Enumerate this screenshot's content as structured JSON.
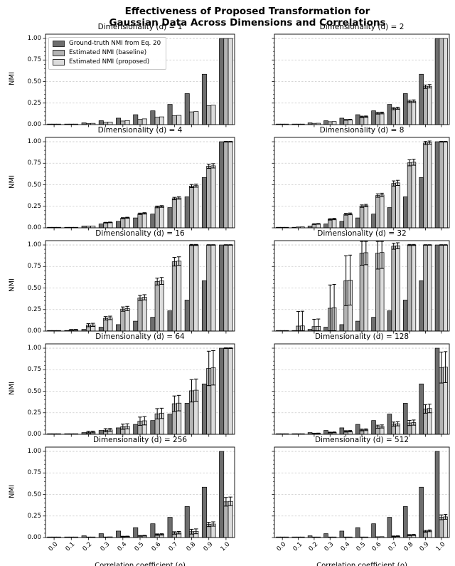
{
  "figure": {
    "title_line1": "Effectiveness of Proposed Transformation for",
    "title_line2": "Gaussian Data Across Dimensions and Correlations",
    "xlabel": "Correlation coefficient (ρ)",
    "ylabel": "NMI"
  },
  "legend": {
    "items": [
      {
        "label": "Ground-truth NMI from Eq. 20",
        "series": "ground_truth"
      },
      {
        "label": "Estimated NMI (baseline)",
        "series": "baseline"
      },
      {
        "label": "Estimated NMI (proposed)",
        "series": "proposed"
      }
    ]
  },
  "chart_data": {
    "type": "bar",
    "grid": "horizontal-dashed",
    "legend_position": "upper-left-of-first-subplot",
    "categories": [
      "0.0",
      "0.1",
      "0.2",
      "0.3",
      "0.4",
      "0.5",
      "0.6",
      "0.7",
      "0.8",
      "0.9",
      "1.0"
    ],
    "y_ticks": [
      {
        "value": 1.0,
        "label": "1.00"
      },
      {
        "value": 0.75,
        "label": "0.75"
      },
      {
        "value": 0.5,
        "label": "0.50"
      },
      {
        "value": 0.25,
        "label": "0.25"
      },
      {
        "value": 0.0,
        "label": "0.00"
      }
    ],
    "ylim": [
      0,
      1.05
    ],
    "colors": {
      "ground_truth": "#6e6e6e",
      "baseline": "#b4b4b4",
      "proposed": "#dcdcdc",
      "bar_edge": "#000000",
      "grid_line": "#c9c9c9",
      "error_bar": "#000000"
    },
    "ground_truth_shared": [
      0,
      0.005,
      0.02,
      0.045,
      0.075,
      0.115,
      0.16,
      0.235,
      0.36,
      0.585,
      1.0
    ],
    "charts": [
      {
        "title": "Dimensionality (d) = 1",
        "dimensionality": 1,
        "ground_truth": [
          0,
          0.005,
          0.02,
          0.045,
          0.075,
          0.115,
          0.16,
          0.235,
          0.36,
          0.585,
          1.0
        ],
        "baseline": {
          "values": [
            0,
            0.004,
            0.012,
            0.027,
            0.042,
            0.062,
            0.088,
            0.103,
            0.148,
            0.22,
            1.0
          ],
          "errors": [
            0,
            0,
            0,
            0,
            0,
            0,
            0,
            0,
            0,
            0,
            0
          ]
        },
        "proposed": {
          "values": [
            0,
            0.005,
            0.015,
            0.03,
            0.047,
            0.067,
            0.09,
            0.107,
            0.152,
            0.225,
            1.0
          ],
          "errors": [
            0,
            0,
            0,
            0,
            0,
            0,
            0,
            0,
            0,
            0,
            0
          ]
        }
      },
      {
        "title": "Dimensionality (d) = 2",
        "dimensionality": 2,
        "ground_truth": [
          0,
          0.005,
          0.02,
          0.045,
          0.075,
          0.115,
          0.16,
          0.235,
          0.36,
          0.585,
          1.0
        ],
        "baseline": {
          "values": [
            0,
            0.005,
            0.015,
            0.034,
            0.055,
            0.09,
            0.132,
            0.185,
            0.268,
            0.44,
            1.0
          ],
          "errors": [
            0,
            0,
            0,
            0,
            0.004,
            0.008,
            0.01,
            0.012,
            0.015,
            0.02,
            0
          ]
        },
        "proposed": {
          "values": [
            0,
            0.005,
            0.016,
            0.036,
            0.058,
            0.092,
            0.135,
            0.19,
            0.272,
            0.445,
            1.0
          ],
          "errors": [
            0,
            0,
            0,
            0,
            0.004,
            0.008,
            0.01,
            0.012,
            0.015,
            0.02,
            0
          ]
        }
      },
      {
        "title": "Dimensionality (d) = 4",
        "dimensionality": 4,
        "ground_truth": [
          0,
          0.005,
          0.02,
          0.045,
          0.075,
          0.115,
          0.16,
          0.235,
          0.36,
          0.585,
          1.0
        ],
        "baseline": {
          "values": [
            0,
            0.006,
            0.02,
            0.06,
            0.112,
            0.163,
            0.243,
            0.34,
            0.485,
            0.715,
            1.0
          ],
          "errors": [
            0,
            0,
            0,
            0.004,
            0.006,
            0.008,
            0.01,
            0.014,
            0.018,
            0.025,
            0.004
          ]
        },
        "proposed": {
          "values": [
            0,
            0.006,
            0.022,
            0.063,
            0.117,
            0.168,
            0.248,
            0.347,
            0.49,
            0.72,
            1.0
          ],
          "errors": [
            0,
            0,
            0,
            0.004,
            0.006,
            0.008,
            0.01,
            0.014,
            0.018,
            0.025,
            0.004
          ]
        }
      },
      {
        "title": "Dimensionality (d) = 8",
        "dimensionality": 8,
        "ground_truth": [
          0,
          0.005,
          0.02,
          0.045,
          0.075,
          0.115,
          0.16,
          0.235,
          0.36,
          0.585,
          1.0
        ],
        "baseline": {
          "values": [
            0,
            0.01,
            0.043,
            0.098,
            0.158,
            0.252,
            0.375,
            0.515,
            0.755,
            0.985,
            1.0
          ],
          "errors": [
            0,
            0,
            0.004,
            0.008,
            0.01,
            0.014,
            0.02,
            0.03,
            0.035,
            0.018,
            0.004
          ]
        },
        "proposed": {
          "values": [
            0,
            0.011,
            0.046,
            0.102,
            0.162,
            0.258,
            0.382,
            0.522,
            0.762,
            0.99,
            1.0
          ],
          "errors": [
            0,
            0,
            0.004,
            0.008,
            0.01,
            0.014,
            0.02,
            0.03,
            0.035,
            0.018,
            0.004
          ]
        }
      },
      {
        "title": "Dimensionality (d) = 16",
        "dimensionality": 16,
        "ground_truth": [
          0,
          0.005,
          0.02,
          0.045,
          0.075,
          0.115,
          0.16,
          0.235,
          0.36,
          0.585,
          1.0
        ],
        "baseline": {
          "values": [
            0.004,
            0.014,
            0.068,
            0.148,
            0.255,
            0.385,
            0.575,
            0.805,
            1.0,
            1.0,
            1.0
          ],
          "errors": [
            0,
            0.004,
            0.018,
            0.02,
            0.025,
            0.03,
            0.04,
            0.05,
            0.006,
            0.003,
            0.003
          ]
        },
        "proposed": {
          "values": [
            0.004,
            0.015,
            0.072,
            0.153,
            0.262,
            0.392,
            0.582,
            0.812,
            1.0,
            1.0,
            1.0
          ],
          "errors": [
            0,
            0.004,
            0.018,
            0.02,
            0.025,
            0.03,
            0.04,
            0.05,
            0.006,
            0.003,
            0.003
          ]
        }
      },
      {
        "title": "Dimensionality (d) = 32",
        "dimensionality": 32,
        "ground_truth": [
          0,
          0.005,
          0.02,
          0.045,
          0.075,
          0.115,
          0.16,
          0.235,
          0.36,
          0.585,
          1.0
        ],
        "baseline": {
          "values": [
            0.003,
            0.058,
            0.052,
            0.265,
            0.585,
            0.905,
            0.905,
            0.985,
            1.0,
            1.0,
            1.0
          ],
          "errors": [
            0,
            0.17,
            0.085,
            0.27,
            0.29,
            0.14,
            0.185,
            0.035,
            0.006,
            0.003,
            0.003
          ]
        },
        "proposed": {
          "values": [
            0.003,
            0.06,
            0.055,
            0.272,
            0.592,
            0.91,
            0.912,
            0.99,
            1.0,
            1.0,
            1.0
          ],
          "errors": [
            0,
            0.17,
            0.085,
            0.27,
            0.29,
            0.14,
            0.185,
            0.035,
            0.006,
            0.003,
            0.003
          ]
        }
      },
      {
        "title": "Dimensionality (d) = 64",
        "dimensionality": 64,
        "ground_truth": [
          0,
          0.005,
          0.02,
          0.045,
          0.075,
          0.115,
          0.16,
          0.235,
          0.36,
          0.585,
          1.0
        ],
        "baseline": {
          "values": [
            0,
            0.005,
            0.024,
            0.048,
            0.088,
            0.152,
            0.238,
            0.355,
            0.505,
            0.765,
            1.0
          ],
          "errors": [
            0,
            0,
            0.01,
            0.018,
            0.03,
            0.048,
            0.06,
            0.09,
            0.13,
            0.2,
            0.004
          ]
        },
        "proposed": {
          "values": [
            0,
            0.005,
            0.026,
            0.051,
            0.092,
            0.157,
            0.243,
            0.362,
            0.512,
            0.772,
            1.0
          ],
          "errors": [
            0,
            0,
            0.01,
            0.018,
            0.03,
            0.048,
            0.06,
            0.09,
            0.13,
            0.2,
            0.004
          ]
        }
      },
      {
        "title": "Dimensionality (d) = 128",
        "dimensionality": 128,
        "ground_truth": [
          0,
          0.005,
          0.02,
          0.045,
          0.075,
          0.115,
          0.16,
          0.235,
          0.36,
          0.585,
          1.0
        ],
        "baseline": {
          "values": [
            0,
            0.003,
            0.01,
            0.02,
            0.034,
            0.05,
            0.088,
            0.118,
            0.132,
            0.295,
            0.775
          ],
          "errors": [
            0,
            0,
            0.003,
            0.005,
            0.008,
            0.01,
            0.018,
            0.024,
            0.03,
            0.05,
            0.18
          ]
        },
        "proposed": {
          "values": [
            0,
            0.003,
            0.011,
            0.022,
            0.036,
            0.053,
            0.091,
            0.122,
            0.136,
            0.3,
            0.78
          ],
          "errors": [
            0,
            0,
            0.003,
            0.005,
            0.008,
            0.01,
            0.018,
            0.024,
            0.03,
            0.05,
            0.18
          ]
        }
      },
      {
        "title": "Dimensionality (d) = 256",
        "dimensionality": 256,
        "ground_truth": [
          0,
          0.005,
          0.02,
          0.045,
          0.075,
          0.115,
          0.16,
          0.235,
          0.36,
          0.585,
          1.0
        ],
        "baseline": {
          "values": [
            0,
            0.002,
            0.003,
            0.007,
            0.012,
            0.019,
            0.034,
            0.053,
            0.068,
            0.152,
            0.415
          ],
          "errors": [
            0,
            0,
            0,
            0,
            0.003,
            0.004,
            0.008,
            0.014,
            0.028,
            0.025,
            0.05
          ]
        },
        "proposed": {
          "values": [
            0,
            0.002,
            0.004,
            0.008,
            0.013,
            0.021,
            0.036,
            0.056,
            0.072,
            0.157,
            0.42
          ],
          "errors": [
            0,
            0,
            0,
            0,
            0.003,
            0.004,
            0.008,
            0.014,
            0.028,
            0.025,
            0.05
          ]
        }
      },
      {
        "title": "Dimensionality (d) = 512",
        "dimensionality": 512,
        "ground_truth": [
          0,
          0.005,
          0.02,
          0.045,
          0.075,
          0.115,
          0.16,
          0.235,
          0.36,
          0.585,
          1.0
        ],
        "baseline": {
          "values": [
            0,
            0.002,
            0.002,
            0.003,
            0.004,
            0.005,
            0.009,
            0.014,
            0.028,
            0.072,
            0.235
          ],
          "errors": [
            0,
            0,
            0,
            0,
            0,
            0,
            0,
            0.004,
            0.006,
            0.01,
            0.028
          ]
        },
        "proposed": {
          "values": [
            0,
            0.002,
            0.002,
            0.003,
            0.005,
            0.006,
            0.01,
            0.016,
            0.03,
            0.078,
            0.24
          ],
          "errors": [
            0,
            0,
            0,
            0,
            0,
            0,
            0,
            0.004,
            0.006,
            0.01,
            0.028
          ]
        }
      }
    ]
  }
}
